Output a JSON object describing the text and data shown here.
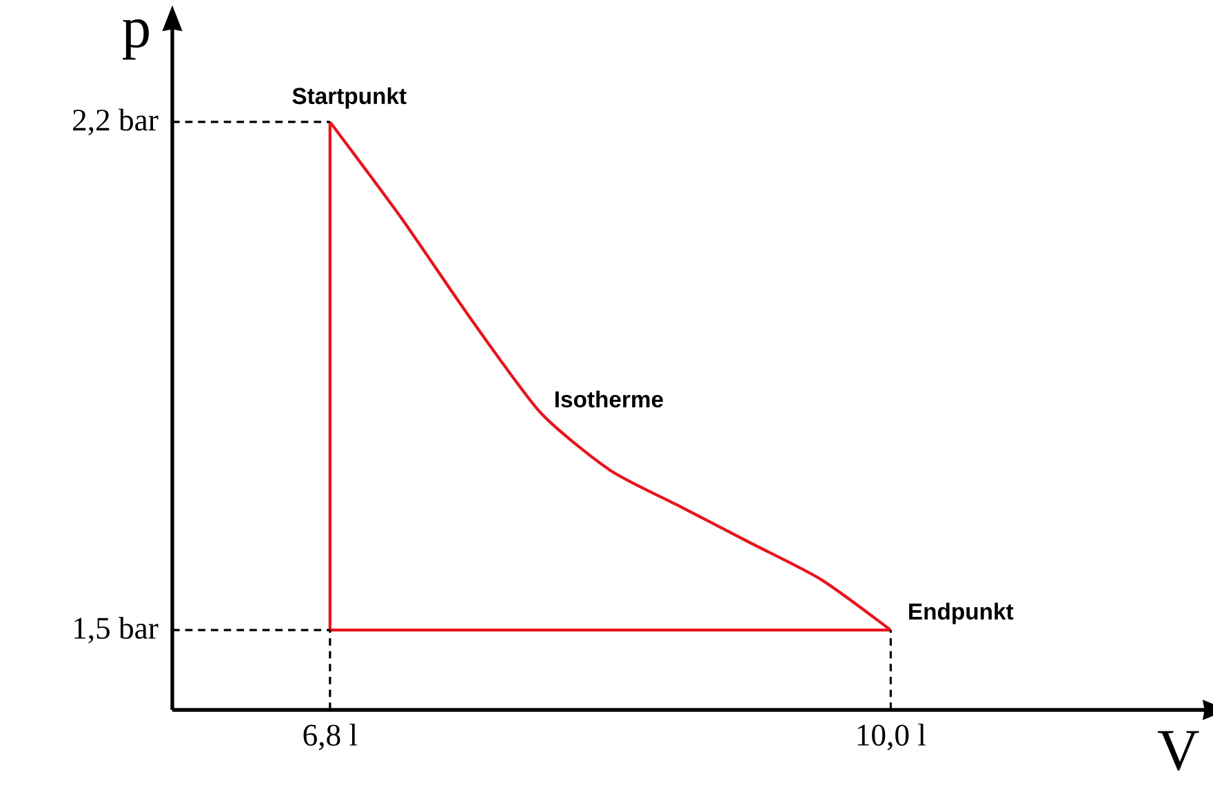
{
  "chart_data": {
    "type": "line",
    "xlabel": "V",
    "ylabel": "p",
    "xlim": [
      5.9,
      11.8
    ],
    "ylim": [
      1.39,
      2.33
    ],
    "xticks": [
      {
        "value": 6.8,
        "label": "6,8 l"
      },
      {
        "value": 10.0,
        "label": "10,0 l"
      }
    ],
    "yticks": [
      {
        "value": 1.5,
        "label": "1,5 bar"
      },
      {
        "value": 2.2,
        "label": "2,2 bar"
      }
    ],
    "series": [
      {
        "x": [
          6.8,
          7.2,
          7.6,
          8.0,
          8.4,
          8.8,
          9.2,
          9.6,
          10.0
        ],
        "values": [
          2.2,
          2.07,
          1.93,
          1.8,
          1.72,
          1.67,
          1.62,
          1.57,
          1.5
        ],
        "color": "#e8141c"
      },
      {
        "x": [
          6.8,
          6.8
        ],
        "values": [
          1.5,
          2.2
        ],
        "color": "#e8141c"
      },
      {
        "x": [
          6.8,
          10.0
        ],
        "values": [
          1.5,
          1.5
        ],
        "color": "#e8141c"
      },
      {
        "x": [
          5.9,
          6.8
        ],
        "values": [
          2.2,
          2.2
        ],
        "color": "#000000",
        "line_style": "dashed"
      },
      {
        "x": [
          5.9,
          6.8
        ],
        "values": [
          1.5,
          1.5
        ],
        "color": "#000000",
        "line_style": "dashed"
      },
      {
        "x": [
          6.8,
          6.8
        ],
        "values": [
          1.39,
          1.5
        ],
        "color": "#000000",
        "line_style": "dashed"
      },
      {
        "x": [
          10.0,
          10.0
        ],
        "values": [
          1.39,
          1.5
        ],
        "color": "#000000",
        "line_style": "dashed"
      }
    ],
    "annotations": [
      {
        "text": "Startpunkt",
        "x": 6.8,
        "y": 2.2
      },
      "Isotherme",
      {
        "text": "Endpunkt",
        "x": 10.0,
        "y": 1.5
      }
    ]
  }
}
